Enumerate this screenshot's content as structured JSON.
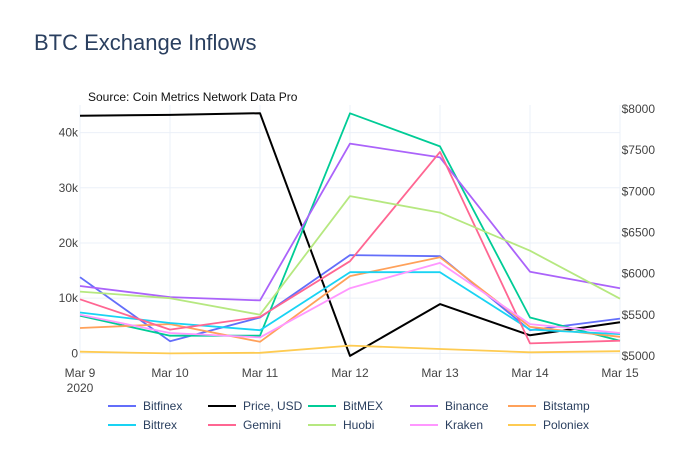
{
  "chart_data": {
    "type": "line",
    "title": "BTC Exchange Inflows",
    "annotation": "Source: Coin Metrics Network Data Pro",
    "x_ticks": [
      {
        "label": "Mar 9",
        "sublabel": "2020"
      },
      {
        "label": "Mar 10",
        "sublabel": ""
      },
      {
        "label": "Mar 11",
        "sublabel": ""
      },
      {
        "label": "Mar 12",
        "sublabel": ""
      },
      {
        "label": "Mar 13",
        "sublabel": ""
      },
      {
        "label": "Mar 14",
        "sublabel": ""
      },
      {
        "label": "Mar 15",
        "sublabel": ""
      }
    ],
    "y_left": {
      "range": [
        -1200,
        45000
      ],
      "ticks": [
        0,
        10000,
        20000,
        30000,
        40000
      ],
      "tick_labels": [
        "0",
        "10k",
        "20k",
        "30k",
        "40k"
      ]
    },
    "y_right": {
      "range": [
        4950,
        8050
      ],
      "ticks": [
        5000,
        5500,
        6000,
        6500,
        7000,
        7500,
        8000
      ],
      "tick_labels": [
        "$5000",
        "$5500",
        "$6000",
        "$6500",
        "$7000",
        "$7500",
        "$8000"
      ]
    },
    "series": [
      {
        "name": "Bitfinex",
        "color": "#636efa",
        "axis": "left",
        "values": [
          13800,
          2200,
          6500,
          17800,
          17600,
          4200,
          6300
        ]
      },
      {
        "name": "Price, USD",
        "color": "#000000",
        "axis": "right",
        "values": [
          7920,
          7930,
          7950,
          5000,
          5630,
          5250,
          5410
        ]
      },
      {
        "name": "BitMEX",
        "color": "#00cc96",
        "axis": "left",
        "values": [
          6800,
          3200,
          3200,
          43500,
          37500,
          6500,
          2300
        ]
      },
      {
        "name": "Binance",
        "color": "#ab63fa",
        "axis": "left",
        "values": [
          12200,
          10200,
          9600,
          38000,
          35500,
          14800,
          11800
        ]
      },
      {
        "name": "Bitstamp",
        "color": "#ffa15a",
        "axis": "left",
        "values": [
          4600,
          5300,
          2100,
          14000,
          17400,
          4800,
          3000
        ]
      },
      {
        "name": "Bittrex",
        "color": "#19d3f3",
        "axis": "left",
        "values": [
          7400,
          5500,
          4200,
          14700,
          14700,
          4300,
          3500
        ]
      },
      {
        "name": "Gemini",
        "color": "#ff6692",
        "axis": "left",
        "values": [
          9800,
          4300,
          6600,
          16700,
          36500,
          1800,
          2300
        ]
      },
      {
        "name": "Huobi",
        "color": "#b6e880",
        "axis": "left",
        "values": [
          11200,
          10000,
          7000,
          28500,
          25500,
          18600,
          9900
        ]
      },
      {
        "name": "Kraken",
        "color": "#ff97ff",
        "axis": "left",
        "values": [
          7000,
          3700,
          2900,
          11800,
          16400,
          5300,
          3700
        ]
      },
      {
        "name": "Poloniex",
        "color": "#fecb52",
        "axis": "left",
        "values": [
          300,
          0,
          100,
          1400,
          800,
          200,
          400
        ]
      }
    ],
    "legend_position": "bottom"
  }
}
